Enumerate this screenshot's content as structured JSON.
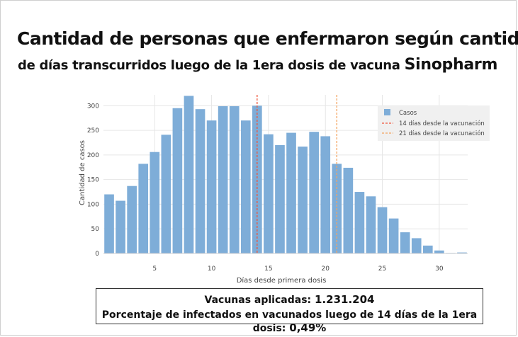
{
  "title_line1": "Cantidad de personas que enfermaron según cantidad",
  "title_line2_prefix": "de días transcurridos luego de la 1era dosis de vacuna ",
  "title_line2_brand": "Sinopharm",
  "info": {
    "vaccines_label": "Vacunas aplicadas: ",
    "vaccines_value": "1.231.204",
    "pct_label": "Porcentaje de infectados en vacunados luego de 14 días de la 1era dosis: ",
    "pct_value": "0,49%"
  },
  "chart_data": {
    "type": "bar",
    "xlabel": "Días desde primera dosis",
    "ylabel": "Cantidad de casos",
    "xlim": [
      0.5,
      32.5
    ],
    "ylim": [
      0,
      322
    ],
    "xticks": [
      5,
      10,
      15,
      20,
      25,
      30
    ],
    "yticks": [
      0,
      50,
      100,
      150,
      200,
      250,
      300
    ],
    "x": [
      1,
      2,
      3,
      4,
      5,
      6,
      7,
      8,
      9,
      10,
      11,
      12,
      13,
      14,
      15,
      16,
      17,
      18,
      19,
      20,
      21,
      22,
      23,
      24,
      25,
      26,
      27,
      28,
      29,
      30,
      31,
      32
    ],
    "values": [
      120,
      107,
      137,
      182,
      206,
      241,
      295,
      320,
      293,
      270,
      299,
      299,
      270,
      300,
      242,
      220,
      245,
      217,
      247,
      238,
      182,
      174,
      125,
      116,
      94,
      71,
      43,
      31,
      16,
      6,
      1,
      2
    ],
    "series_name": "Casos",
    "vlines": [
      {
        "x": 14,
        "label": "14 días desde la vacunación",
        "color": "#ef553b"
      },
      {
        "x": 21,
        "label": "21 días desde la vacunación",
        "color": "#f4a460"
      }
    ],
    "bar_color": "#7eadd8"
  }
}
